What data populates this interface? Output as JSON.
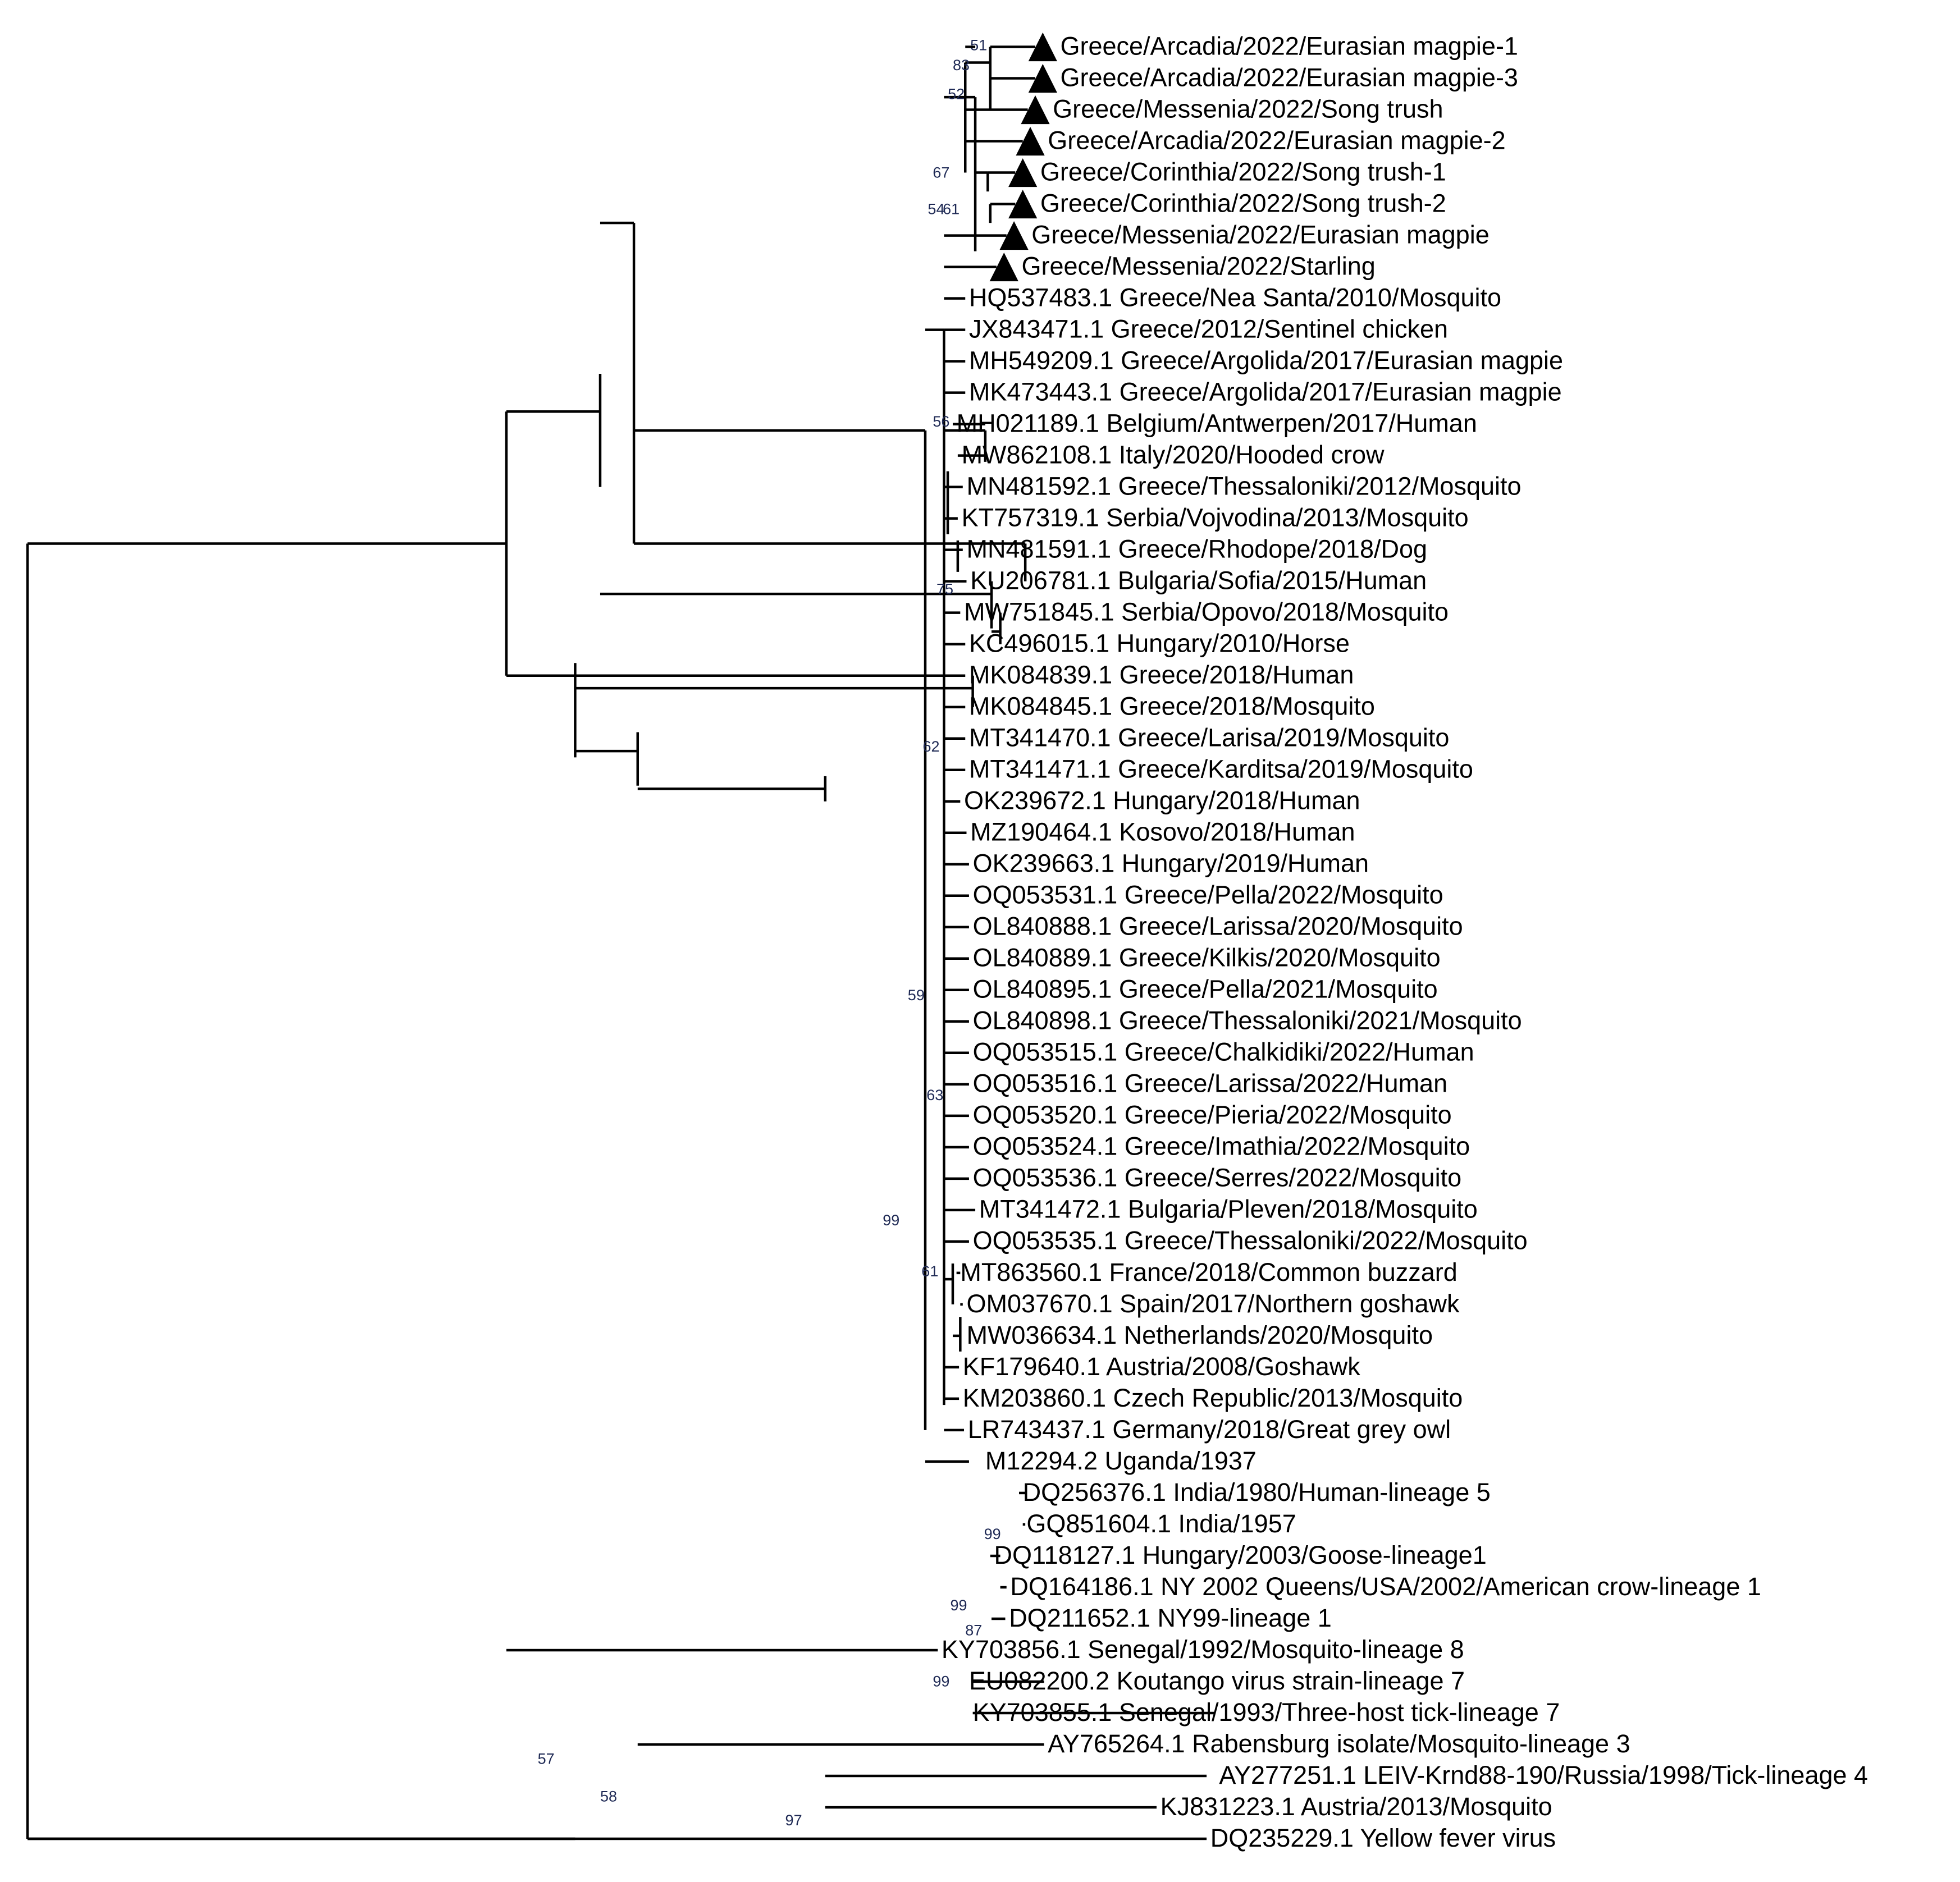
{
  "tree": {
    "leaves": [
      {
        "label": "Greece/Arcadia/2022/Eurasian magpie-1",
        "marker": "triangle"
      },
      {
        "label": "Greece/Arcadia/2022/Eurasian magpie-3",
        "marker": "triangle"
      },
      {
        "label": "Greece/Messenia/2022/Song trush",
        "marker": "triangle"
      },
      {
        "label": "Greece/Arcadia/2022/Eurasian magpie-2",
        "marker": "triangle"
      },
      {
        "label": "Greece/Corinthia/2022/Song trush-1",
        "marker": "triangle"
      },
      {
        "label": "Greece/Corinthia/2022/Song trush-2",
        "marker": "triangle"
      },
      {
        "label": "Greece/Messenia/2022/Eurasian magpie",
        "marker": "triangle"
      },
      {
        "label": "Greece/Messenia/2022/Starling",
        "marker": "triangle"
      },
      {
        "label": "HQ537483.1 Greece/Nea Santa/2010/Mosquito"
      },
      {
        "label": "JX843471.1 Greece/2012/Sentinel chicken"
      },
      {
        "label": "MH549209.1 Greece/Argolida/2017/Eurasian magpie"
      },
      {
        "label": "MK473443.1 Greece/Argolida/2017/Eurasian magpie"
      },
      {
        "label": "MH021189.1 Belgium/Antwerpen/2017/Human"
      },
      {
        "label": "MW862108.1 Italy/2020/Hooded crow"
      },
      {
        "label": "MN481592.1 Greece/Thessaloniki/2012/Mosquito"
      },
      {
        "label": "KT757319.1 Serbia/Vojvodina/2013/Mosquito"
      },
      {
        "label": "MN481591.1 Greece/Rhodope/2018/Dog"
      },
      {
        "label": "KU206781.1 Bulgaria/Sofia/2015/Human"
      },
      {
        "label": "MW751845.1 Serbia/Opovo/2018/Mosquito"
      },
      {
        "label": "KC496015.1 Hungary/2010/Horse"
      },
      {
        "label": "MK084839.1 Greece/2018/Human"
      },
      {
        "label": "MK084845.1 Greece/2018/Mosquito"
      },
      {
        "label": "MT341470.1 Greece/Larisa/2019/Mosquito"
      },
      {
        "label": "MT341471.1 Greece/Karditsa/2019/Mosquito"
      },
      {
        "label": "OK239672.1 Hungary/2018/Human"
      },
      {
        "label": "MZ190464.1 Kosovo/2018/Human"
      },
      {
        "label": "OK239663.1 Hungary/2019/Human"
      },
      {
        "label": "OQ053531.1 Greece/Pella/2022/Mosquito"
      },
      {
        "label": "OL840888.1 Greece/Larissa/2020/Mosquito"
      },
      {
        "label": "OL840889.1 Greece/Kilkis/2020/Mosquito"
      },
      {
        "label": "OL840895.1 Greece/Pella/2021/Mosquito"
      },
      {
        "label": "OL840898.1 Greece/Thessaloniki/2021/Mosquito"
      },
      {
        "label": "OQ053515.1 Greece/Chalkidiki/2022/Human"
      },
      {
        "label": "OQ053516.1 Greece/Larissa/2022/Human"
      },
      {
        "label": "OQ053520.1 Greece/Pieria/2022/Mosquito"
      },
      {
        "label": "OQ053524.1 Greece/Imathia/2022/Mosquito"
      },
      {
        "label": "OQ053536.1 Greece/Serres/2022/Mosquito"
      },
      {
        "label": "MT341472.1 Bulgaria/Pleven/2018/Mosquito"
      },
      {
        "label": "OQ053535.1 Greece/Thessaloniki/2022/Mosquito"
      },
      {
        "label": "MT863560.1 France/2018/Common buzzard"
      },
      {
        "label": "OM037670.1 Spain/2017/Northern goshawk"
      },
      {
        "label": "MW036634.1 Netherlands/2020/Mosquito"
      },
      {
        "label": "KF179640.1 Austria/2008/Goshawk"
      },
      {
        "label": "KM203860.1 Czech Republic/2013/Mosquito"
      },
      {
        "label": "LR743437.1 Germany/2018/Great grey owl"
      },
      {
        "label": "M12294.2 Uganda/1937"
      },
      {
        "label": "DQ256376.1 India/1980/Human-lineage 5"
      },
      {
        "label": "GQ851604.1 India/1957"
      },
      {
        "label": "DQ118127.1 Hungary/2003/Goose-lineage1"
      },
      {
        "label": "DQ164186.1 NY 2002 Queens/USA/2002/American crow-lineage 1"
      },
      {
        "label": "DQ211652.1 NY99-lineage 1"
      },
      {
        "label": "KY703856.1 Senegal/1992/Mosquito-lineage 8"
      },
      {
        "label": "EU082200.2 Koutango virus strain-lineage 7"
      },
      {
        "label": "KY703855.1 Senegal/1993/Three-host tick-lineage 7"
      },
      {
        "label": "AY765264.1 Rabensburg isolate/Mosquito-lineage 3"
      },
      {
        "label": "AY277251.1 LEIV-Krnd88-190/Russia/1998/Tick-lineage 4"
      },
      {
        "label": "KJ831223.1 Austria/2013/Mosquito"
      },
      {
        "label": "DQ235229.1 Yellow fever virus"
      }
    ],
    "bootstrap": [
      "51",
      "83",
      "52",
      "67",
      "54",
      "61",
      "56",
      "75",
      "62",
      "59",
      "63",
      "99",
      "61",
      "99",
      "99",
      "87",
      "99",
      "57",
      "58",
      "97"
    ]
  }
}
